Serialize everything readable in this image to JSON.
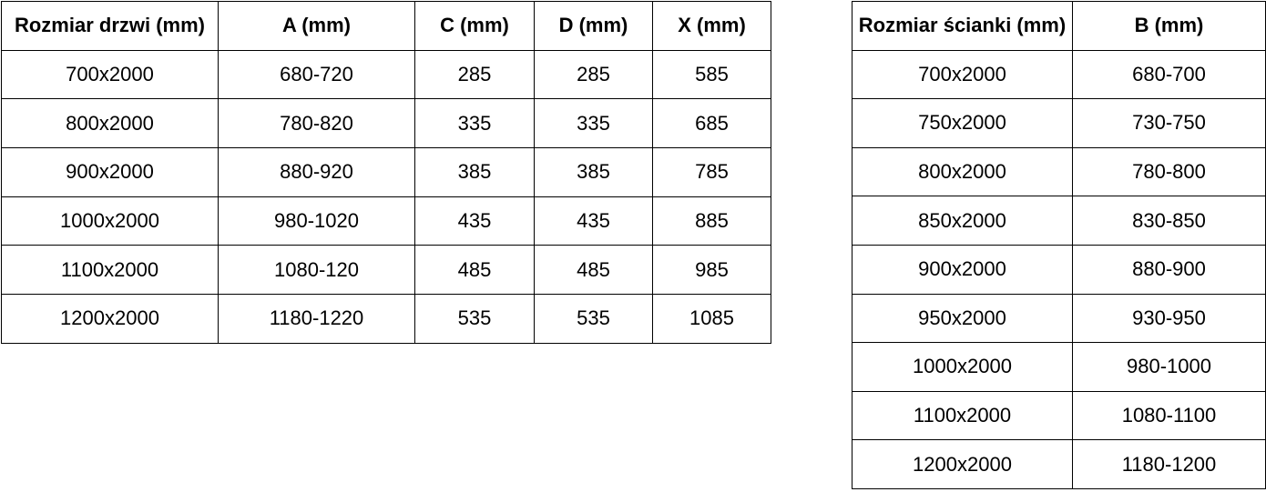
{
  "page": {
    "background_color": "#ffffff",
    "text_color": "#000000",
    "border_color": "#000000"
  },
  "tables": [
    {
      "id": "door-sizes",
      "headers": [
        "Rozmiar drzwi (mm)",
        "A (mm)",
        "C (mm)",
        "D (mm)",
        "X (mm)"
      ],
      "rows": [
        [
          "700x2000",
          "680-720",
          "285",
          "285",
          "585"
        ],
        [
          "800x2000",
          "780-820",
          "335",
          "335",
          "685"
        ],
        [
          "900x2000",
          "880-920",
          "385",
          "385",
          "785"
        ],
        [
          "1000x2000",
          "980-1020",
          "435",
          "435",
          "885"
        ],
        [
          "1100x2000",
          "1080-120",
          "485",
          "485",
          "985"
        ],
        [
          "1200x2000",
          "1180-1220",
          "535",
          "535",
          "1085"
        ]
      ]
    },
    {
      "id": "wall-panel-sizes",
      "headers": [
        "Rozmiar ścianki (mm)",
        "B (mm)"
      ],
      "rows": [
        [
          "700x2000",
          "680-700"
        ],
        [
          "750x2000",
          "730-750"
        ],
        [
          "800x2000",
          "780-800"
        ],
        [
          "850x2000",
          "830-850"
        ],
        [
          "900x2000",
          "880-900"
        ],
        [
          "950x2000",
          "930-950"
        ],
        [
          "1000x2000",
          "980-1000"
        ],
        [
          "1100x2000",
          "1080-1100"
        ],
        [
          "1200x2000",
          "1180-1200"
        ]
      ]
    }
  ]
}
